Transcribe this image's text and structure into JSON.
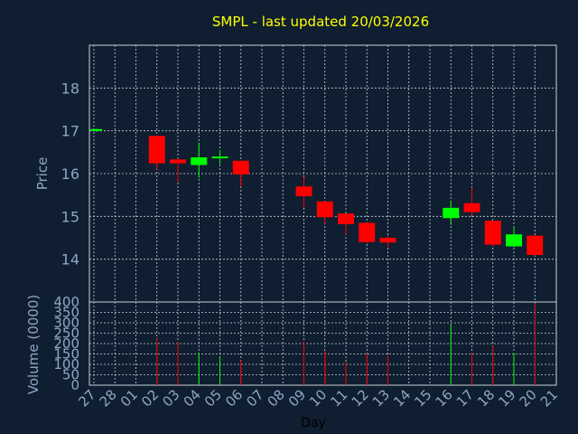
{
  "chart_data": {
    "type": "candlestick",
    "title": "SMPL - last updated 20/03/2026",
    "xlabel": "Day",
    "x_ticks": [
      "27",
      "28",
      "01",
      "02",
      "03",
      "04",
      "05",
      "06",
      "07",
      "08",
      "09",
      "10",
      "11",
      "12",
      "13",
      "14",
      "15",
      "16",
      "17",
      "18",
      "19",
      "20",
      "21"
    ],
    "price_panel": {
      "ylabel": "Price",
      "y_ticks": [
        14,
        15,
        16,
        17,
        18
      ],
      "ylim": [
        13.0,
        19.0
      ],
      "grid": true
    },
    "volume_panel": {
      "ylabel": "Volume (0000)",
      "y_ticks": [
        0,
        50,
        100,
        150,
        200,
        250,
        300,
        350,
        400
      ],
      "ylim": [
        0,
        400
      ],
      "grid": true
    },
    "colors": {
      "up": "#00ff00",
      "down": "#ff0000",
      "title": "#ffff00",
      "axis_text": "#8fa6c5",
      "background": "#0f1e30"
    },
    "candles": [
      {
        "day": "27",
        "open": 17.0,
        "high": 17.05,
        "low": 16.98,
        "close": 17.04,
        "volume": 0
      },
      {
        "day": "02",
        "open": 16.88,
        "high": 16.88,
        "low": 16.1,
        "close": 16.24,
        "volume": 225
      },
      {
        "day": "03",
        "open": 16.33,
        "high": 16.35,
        "low": 15.8,
        "close": 16.24,
        "volume": 210
      },
      {
        "day": "04",
        "open": 16.2,
        "high": 16.72,
        "low": 15.9,
        "close": 16.38,
        "volume": 155
      },
      {
        "day": "05",
        "open": 16.36,
        "high": 16.55,
        "low": 16.22,
        "close": 16.4,
        "volume": 140
      },
      {
        "day": "06",
        "open": 16.3,
        "high": 16.3,
        "low": 15.7,
        "close": 15.98,
        "volume": 120
      },
      {
        "day": "09",
        "open": 15.7,
        "high": 15.92,
        "low": 15.2,
        "close": 15.47,
        "volume": 210
      },
      {
        "day": "10",
        "open": 15.35,
        "high": 15.35,
        "low": 14.83,
        "close": 14.98,
        "volume": 165
      },
      {
        "day": "11",
        "open": 15.07,
        "high": 15.07,
        "low": 14.58,
        "close": 14.82,
        "volume": 110
      },
      {
        "day": "12",
        "open": 14.85,
        "high": 14.85,
        "low": 14.38,
        "close": 14.4,
        "volume": 150
      },
      {
        "day": "13",
        "open": 14.5,
        "high": 14.55,
        "low": 14.28,
        "close": 14.39,
        "volume": 145
      },
      {
        "day": "16",
        "open": 14.96,
        "high": 15.37,
        "low": 14.8,
        "close": 15.2,
        "volume": 290
      },
      {
        "day": "17",
        "open": 15.31,
        "high": 15.67,
        "low": 15.02,
        "close": 15.1,
        "volume": 155
      },
      {
        "day": "18",
        "open": 14.9,
        "high": 14.9,
        "low": 14.3,
        "close": 14.34,
        "volume": 190
      },
      {
        "day": "19",
        "open": 14.3,
        "high": 14.75,
        "low": 14.28,
        "close": 14.58,
        "volume": 155
      },
      {
        "day": "20",
        "open": 14.55,
        "high": 14.55,
        "low": 14.08,
        "close": 14.1,
        "volume": 395
      }
    ]
  }
}
